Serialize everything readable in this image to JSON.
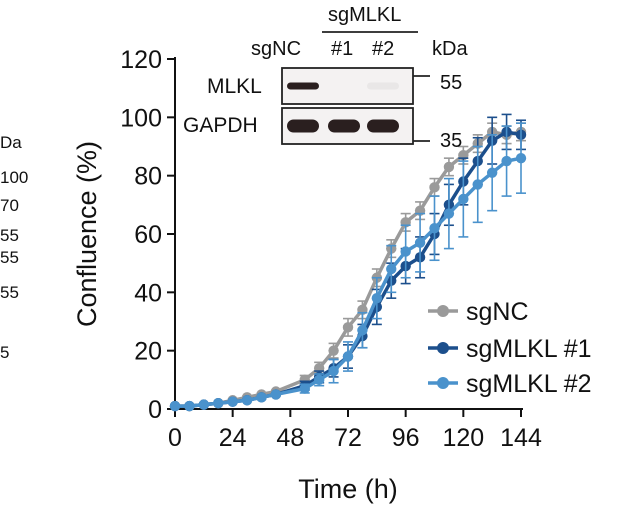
{
  "colors": {
    "sgNC": "#9a9a9a",
    "sgMLKL_1": "#1c4f8c",
    "sgMLKL_2": "#4a92cc",
    "axis": "#111111",
    "blot_border": "#222222",
    "band": "#2a1f1f"
  },
  "left_panel_fragment": {
    "header": "Da",
    "markers": [
      "100",
      "70",
      "55",
      "55",
      "55",
      "5"
    ]
  },
  "western_blot": {
    "group_label": "sgMLKL",
    "lanes": [
      "sgNC",
      "#1",
      "#2"
    ],
    "unit_label": "kDa",
    "rows": [
      {
        "protein": "MLKL",
        "marker_kda": "55",
        "band_intensity": [
          1.0,
          0.0,
          0.05
        ]
      },
      {
        "protein": "GAPDH",
        "marker_kda": "35",
        "band_intensity": [
          1.0,
          1.0,
          1.0
        ]
      }
    ]
  },
  "chart_data": {
    "type": "line",
    "title": "",
    "xlabel": "Time (h)",
    "ylabel": "Confluence (%)",
    "xlim": [
      0,
      144
    ],
    "ylim": [
      0,
      120
    ],
    "xticks": [
      0,
      24,
      48,
      72,
      96,
      120,
      144
    ],
    "yticks": [
      0,
      20,
      40,
      60,
      80,
      100,
      120
    ],
    "grid": false,
    "legend_position": "lower-right",
    "x": [
      0,
      6,
      12,
      18,
      24,
      30,
      36,
      42,
      54,
      60,
      66,
      72,
      78,
      84,
      90,
      96,
      102,
      108,
      114,
      120,
      126,
      132,
      138,
      144
    ],
    "series": [
      {
        "name": "sgNC",
        "values": [
          1,
          1,
          1.5,
          2,
          3,
          4,
          5,
          6,
          10,
          14,
          20,
          28,
          34,
          45,
          55,
          64,
          68,
          76,
          83,
          87,
          91,
          95,
          94,
          95
        ],
        "errors": [
          0.5,
          0.5,
          0.5,
          0.5,
          0.5,
          0.5,
          0.5,
          0.5,
          1.5,
          2,
          2.5,
          3,
          3,
          3,
          3,
          3,
          3,
          3,
          3,
          3,
          3,
          3,
          3,
          3
        ]
      },
      {
        "name": "sgMLKL #1",
        "values": [
          1,
          1,
          1.5,
          2,
          2.5,
          3,
          4,
          5,
          8,
          11,
          14,
          18,
          25,
          35,
          44,
          49,
          52,
          60,
          70,
          78,
          85,
          92,
          95,
          94
        ],
        "errors": [
          0.5,
          0.5,
          0.5,
          0.5,
          0.5,
          0.5,
          0.5,
          0.5,
          1.5,
          2,
          3,
          4,
          4,
          6,
          6,
          6,
          7,
          7,
          7,
          8,
          8,
          8,
          6,
          5
        ]
      },
      {
        "name": "sgMLKL #2",
        "values": [
          1,
          1,
          1.5,
          2,
          2.5,
          3,
          4,
          5,
          7,
          10,
          13,
          18,
          27,
          38,
          48,
          54,
          57,
          62,
          67,
          72,
          77,
          81,
          85,
          86
        ],
        "errors": [
          0.5,
          0.5,
          0.5,
          0.5,
          0.5,
          0.5,
          0.5,
          0.5,
          1.5,
          2,
          4,
          5,
          6,
          7,
          8,
          9,
          10,
          11,
          12,
          13,
          13,
          13,
          12,
          12
        ]
      }
    ]
  }
}
